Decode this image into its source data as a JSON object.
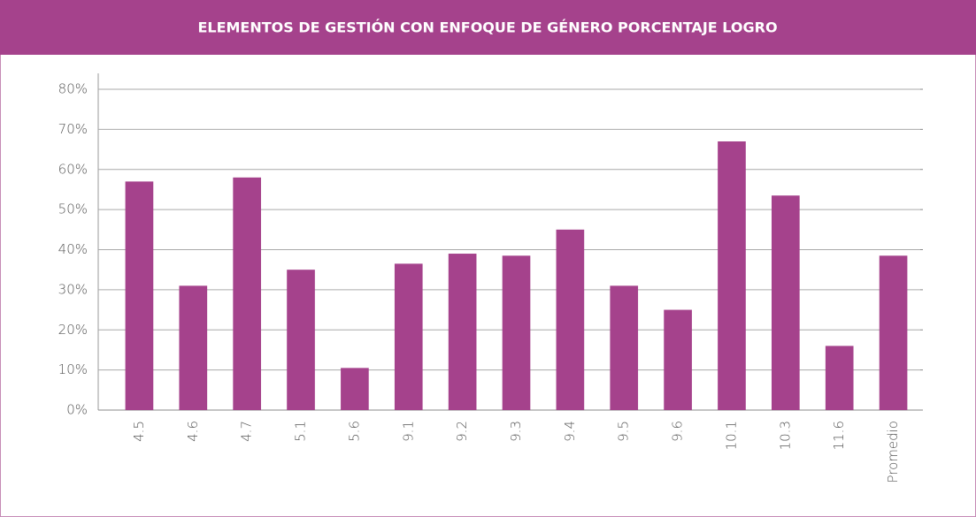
{
  "chart_data": {
    "type": "bar",
    "title": "ELEMENTOS DE GESTIÓN CON ENFOQUE DE GÉNERO PORCENTAJE LOGRO",
    "categories": [
      "4.5",
      "4.6",
      "4.7",
      "5.1",
      "5.6",
      "9.1",
      "9.2",
      "9.3",
      "9.4",
      "9.5",
      "9.6",
      "10.1",
      "10.3",
      "11.6",
      "Promedio"
    ],
    "values": [
      57,
      31,
      58,
      35,
      10.5,
      36.5,
      39,
      38.5,
      45,
      31,
      25,
      67,
      53.5,
      16,
      38.5
    ],
    "color": "#a5428c",
    "ylim": [
      0,
      80
    ],
    "yticks": [
      {
        "value": 0,
        "label": "0%"
      },
      {
        "value": 10,
        "label": "10%"
      },
      {
        "value": 20,
        "label": "20%"
      },
      {
        "value": 30,
        "label": "30%"
      },
      {
        "value": 40,
        "label": "40%"
      },
      {
        "value": 50,
        "label": "50%"
      },
      {
        "value": 60,
        "label": "60%"
      },
      {
        "value": 70,
        "label": "70%"
      },
      {
        "value": 80,
        "label": "80%"
      }
    ],
    "grid": true
  }
}
